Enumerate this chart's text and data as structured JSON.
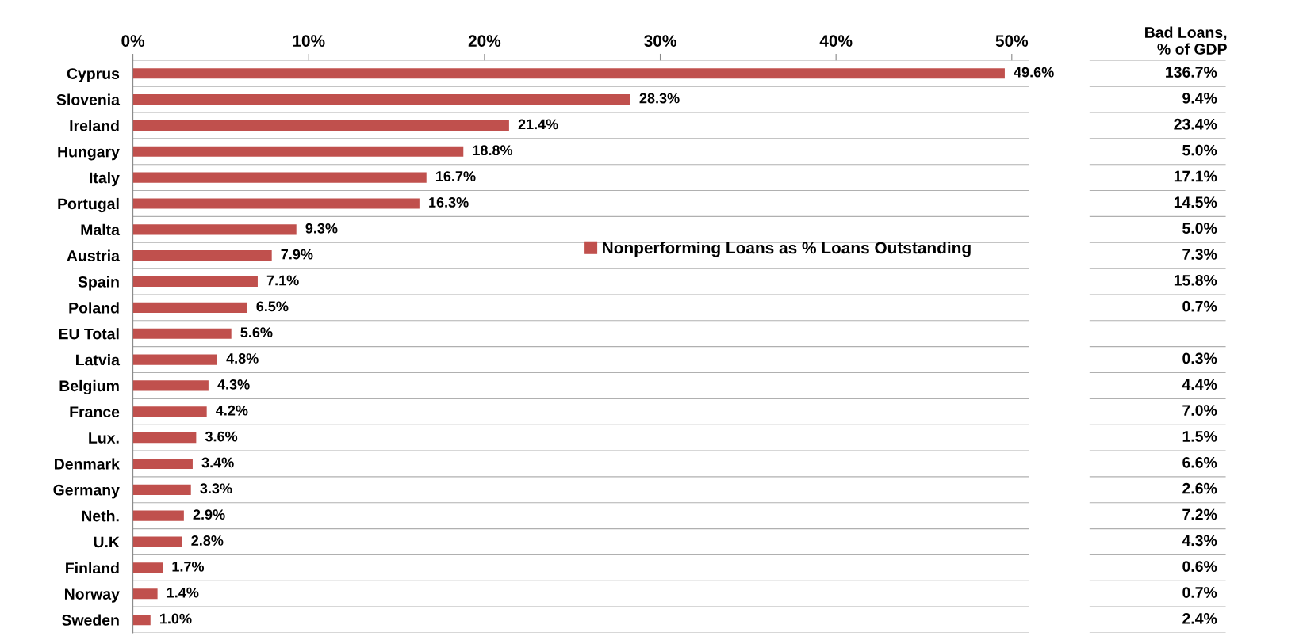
{
  "chart_data": {
    "type": "bar",
    "orientation": "horizontal",
    "categories": [
      "Cyprus",
      "Slovenia",
      "Ireland",
      "Hungary",
      "Italy",
      "Portugal",
      "Malta",
      "Austria",
      "Spain",
      "Poland",
      "EU Total",
      "Latvia",
      "Belgium",
      "France",
      "Lux.",
      "Denmark",
      "Germany",
      "Neth.",
      "U.K",
      "Finland",
      "Norway",
      "Sweden"
    ],
    "series": [
      {
        "name": "Nonperforming Loans as % Loans Outstanding",
        "color": "#c0504d",
        "values": [
          49.6,
          28.3,
          21.4,
          18.8,
          16.7,
          16.3,
          9.3,
          7.9,
          7.1,
          6.5,
          5.6,
          4.8,
          4.3,
          4.2,
          3.6,
          3.4,
          3.3,
          2.9,
          2.8,
          1.7,
          1.4,
          1.0
        ]
      }
    ],
    "value_labels": [
      "49.6%",
      "28.3%",
      "21.4%",
      "18.8%",
      "16.7%",
      "16.3%",
      "9.3%",
      "7.9%",
      "7.1%",
      "6.5%",
      "5.6%",
      "4.8%",
      "4.3%",
      "4.2%",
      "3.6%",
      "3.4%",
      "3.3%",
      "2.9%",
      "2.8%",
      "1.7%",
      "1.4%",
      "1.0%"
    ],
    "xlim": [
      0,
      51
    ],
    "xticks": [
      {
        "value": 0,
        "label": "0%"
      },
      {
        "value": 10,
        "label": "10%"
      },
      {
        "value": 20,
        "label": "20%"
      },
      {
        "value": 30,
        "label": "30%"
      },
      {
        "value": 40,
        "label": "40%"
      },
      {
        "value": 50,
        "label": "50%"
      }
    ],
    "grid": "y",
    "legend": "center",
    "annotations": [
      "Bad Loans,\n% of GDP",
      "136.7%\n9.4%\n23.4%\n5.0%\n17.1%\n14.5%\n5.0%\n7.3%\n15.8%\n0.7%\n\n0.3%\n4.4%\n7.0%\n1.5%\n6.6%\n2.6%\n7.2%\n4.3%\n0.6%\n0.7%\n2.4%"
    ]
  }
}
